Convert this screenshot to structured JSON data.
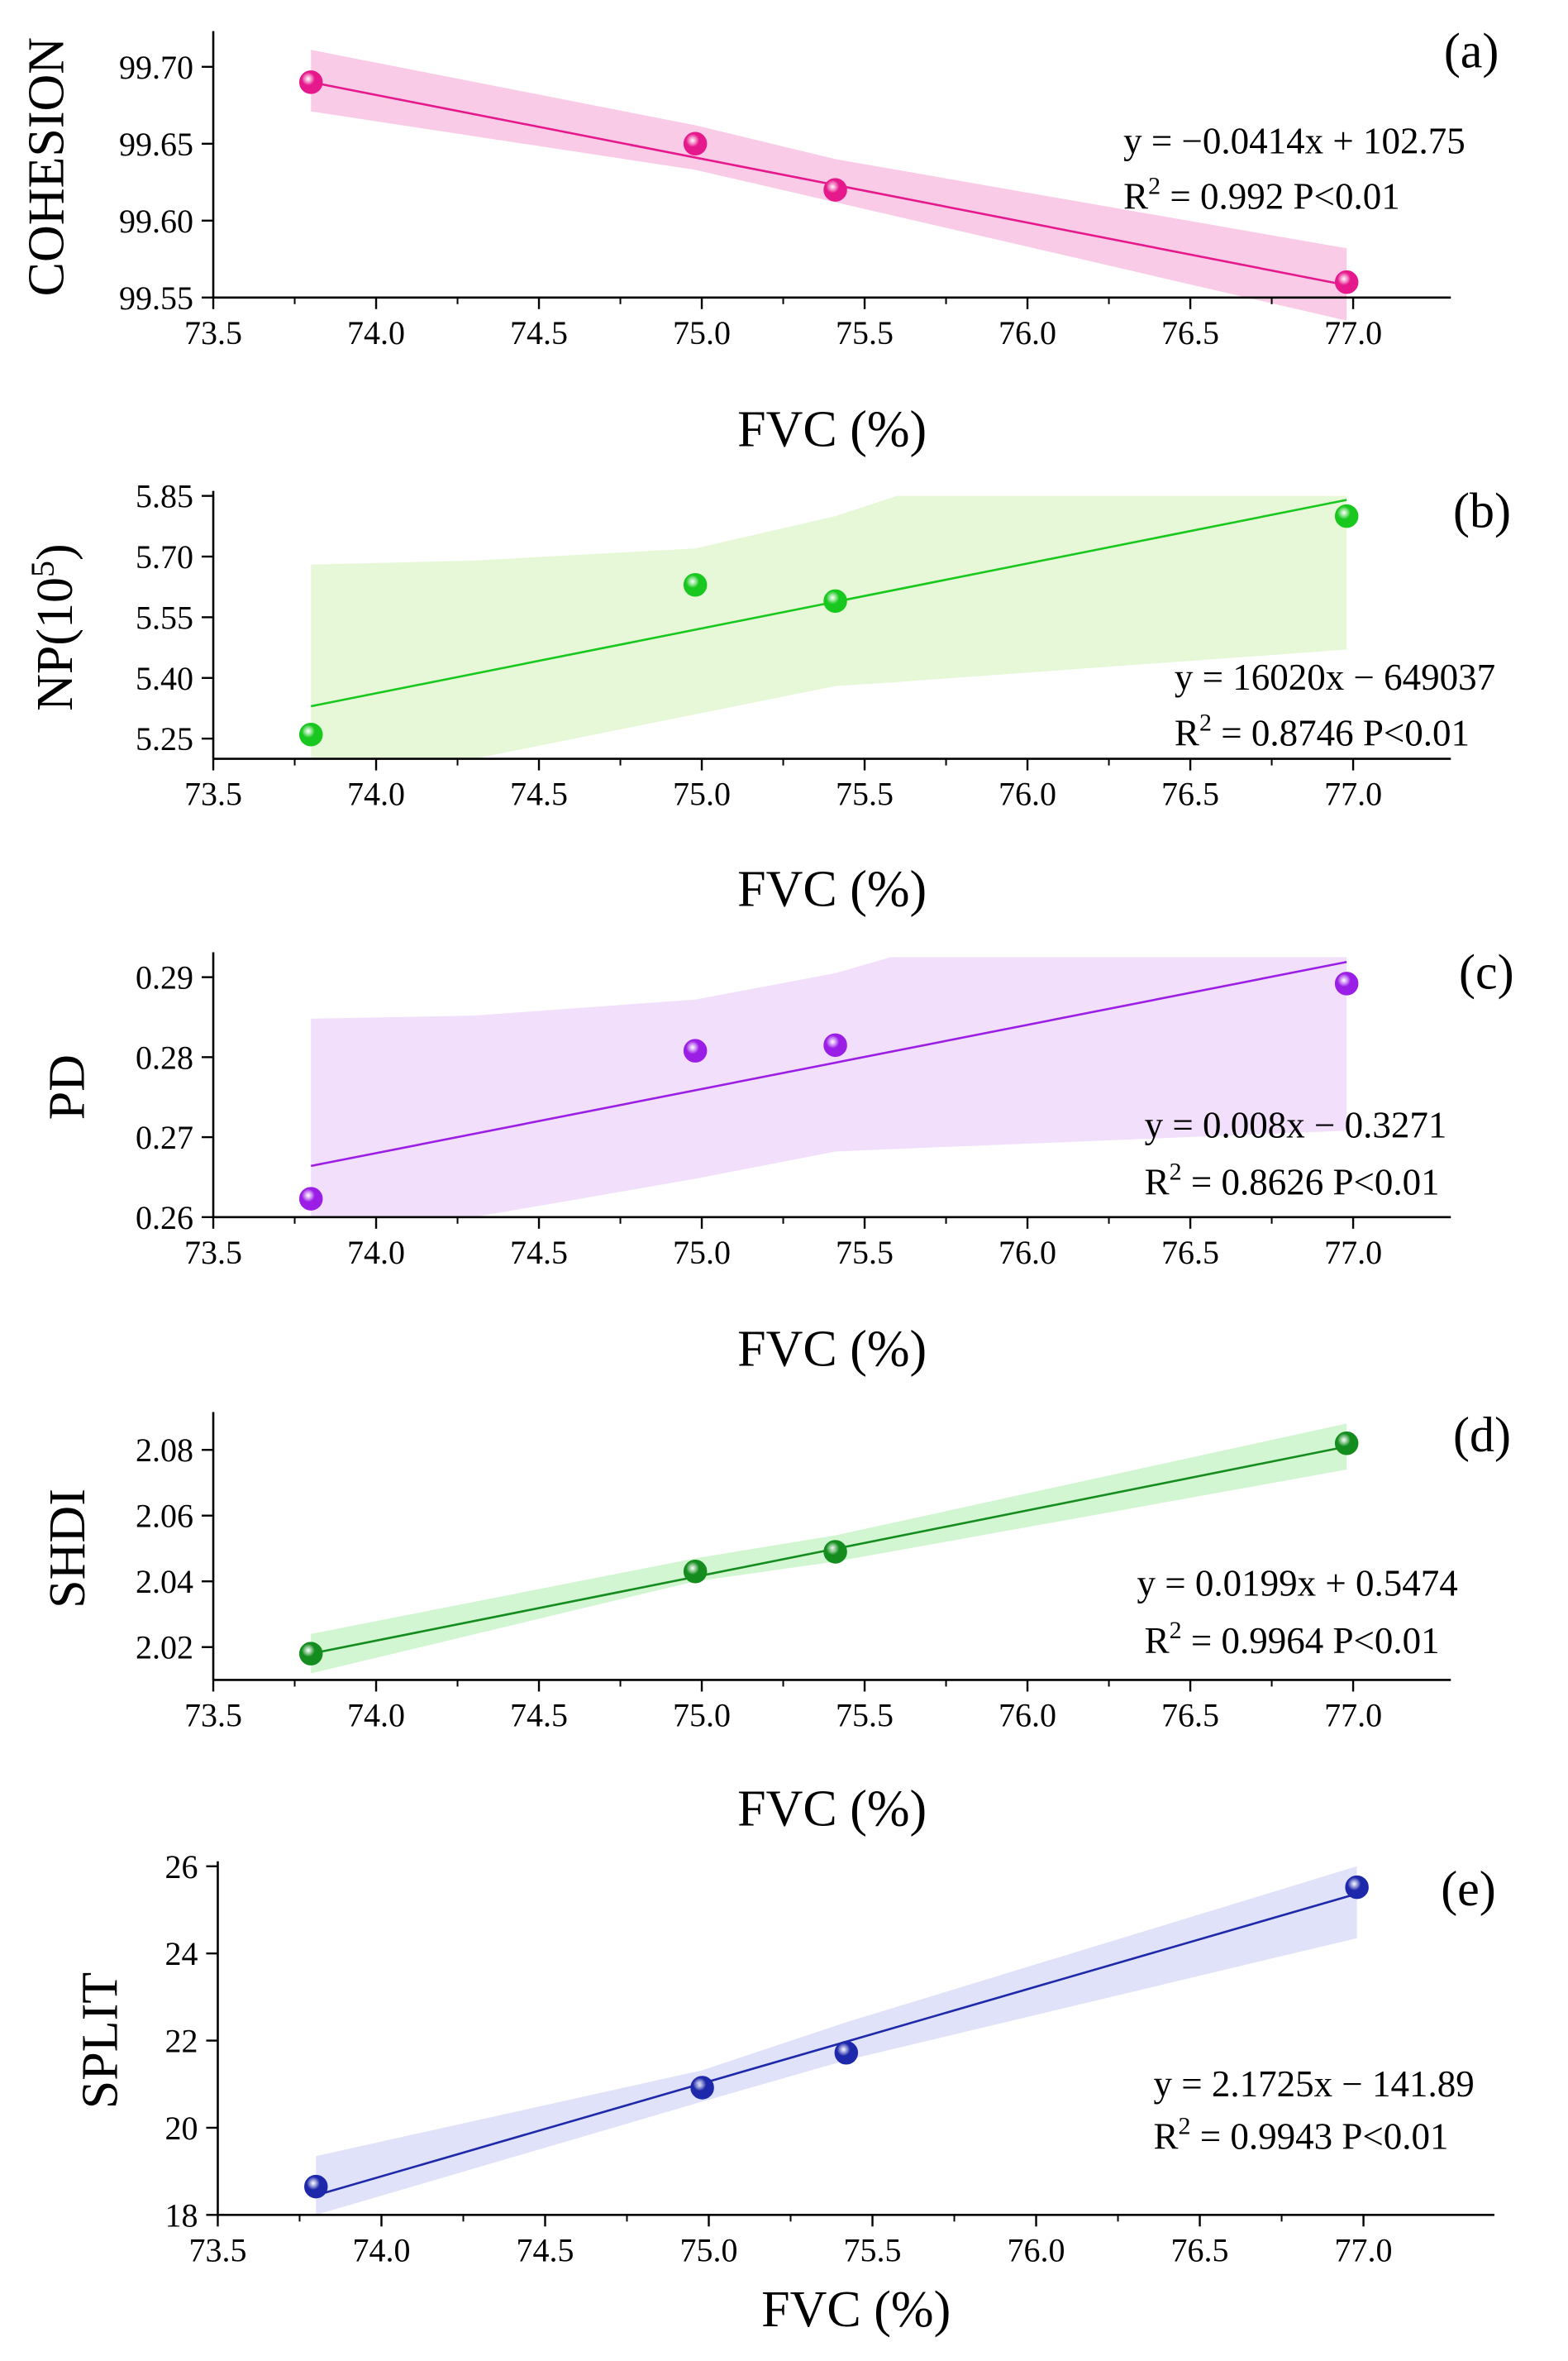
{
  "chart_data": [
    {
      "type": "scatter",
      "panel_label": "(a)",
      "ylabel": "COHESION",
      "xlabel": "FVC (%)",
      "xlim": [
        73.5,
        77.3
      ],
      "ylim": [
        99.55,
        99.72
      ],
      "x_ticks": [
        "73.5",
        "74.0",
        "74.5",
        "75.0",
        "75.5",
        "76.0",
        "76.5",
        "77.0"
      ],
      "y_ticks": [
        "99.55",
        "99.60",
        "99.65",
        "99.70"
      ],
      "y_tick_values": [
        99.55,
        99.6,
        99.65,
        99.7
      ],
      "points": [
        {
          "x": 73.8,
          "y": 99.69
        },
        {
          "x": 74.98,
          "y": 99.65
        },
        {
          "x": 75.41,
          "y": 99.62
        },
        {
          "x": 76.98,
          "y": 99.56
        }
      ],
      "fit": {
        "x_start": 73.8,
        "y_start": 99.69,
        "x_end": 76.98,
        "y_end": 99.558
      },
      "band": [
        {
          "x": 73.8,
          "lo": 99.671,
          "hi": 99.711
        },
        {
          "x": 74.98,
          "lo": 99.633,
          "hi": 99.662
        },
        {
          "x": 75.41,
          "lo": 99.612,
          "hi": 99.64
        },
        {
          "x": 76.98,
          "lo": 99.535,
          "hi": 99.582
        }
      ],
      "equation": "y = −0.0414x + 102.75",
      "r2_prefix": "R",
      "r2_sup": "2",
      "r2_suffix": " = 0.992 P<0.01",
      "color": "#e6198c",
      "band_color": "#f8c5e3"
    },
    {
      "type": "scatter",
      "panel_label": "(b)",
      "ylabel_prefix": "NP(10",
      "ylabel_sup": "5",
      "ylabel_suffix": ")",
      "xlabel": "FVC (%)",
      "xlim": [
        73.5,
        77.3
      ],
      "ylim": [
        5.2,
        5.85
      ],
      "x_ticks": [
        "73.5",
        "74.0",
        "74.5",
        "75.0",
        "75.5",
        "76.0",
        "76.5",
        "77.0"
      ],
      "y_ticks": [
        "5.25",
        "5.40",
        "5.55",
        "5.70",
        "5.85"
      ],
      "y_tick_values": [
        5.25,
        5.4,
        5.55,
        5.7,
        5.85
      ],
      "points": [
        {
          "x": 73.8,
          "y": 5.26
        },
        {
          "x": 74.98,
          "y": 5.63
        },
        {
          "x": 75.41,
          "y": 5.59
        },
        {
          "x": 76.98,
          "y": 5.8
        }
      ],
      "fit": {
        "x_start": 73.8,
        "y_start": 5.33,
        "x_end": 76.98,
        "y_end": 5.84
      },
      "band": [
        {
          "x": 73.8,
          "lo": 5.2,
          "hi": 5.68
        },
        {
          "x": 74.3,
          "lo": 5.2,
          "hi": 5.69
        },
        {
          "x": 74.98,
          "lo": 5.31,
          "hi": 5.72
        },
        {
          "x": 75.41,
          "lo": 5.38,
          "hi": 5.8
        },
        {
          "x": 75.6,
          "lo": 5.39,
          "hi": 5.85
        },
        {
          "x": 76.98,
          "lo": 5.47,
          "hi": 5.85
        }
      ],
      "equation": "y = 16020x − 649037",
      "r2_prefix": "R",
      "r2_sup": "2",
      "r2_suffix": " = 0.8746 P<0.01",
      "color": "#19c81e",
      "band_color": "#e4f7d4"
    },
    {
      "type": "scatter",
      "panel_label": "(c)",
      "ylabel": "PD",
      "xlabel": "FVC (%)",
      "xlim": [
        73.5,
        77.3
      ],
      "ylim": [
        0.26,
        0.2925
      ],
      "x_ticks": [
        "73.5",
        "74.0",
        "74.5",
        "75.0",
        "75.5",
        "76.0",
        "76.5",
        "77.0"
      ],
      "y_ticks": [
        "0.26",
        "0.27",
        "0.28",
        "0.29"
      ],
      "y_tick_values": [
        0.26,
        0.27,
        0.28,
        0.29
      ],
      "points": [
        {
          "x": 73.8,
          "y": 0.2623
        },
        {
          "x": 74.98,
          "y": 0.2808
        },
        {
          "x": 75.41,
          "y": 0.2815
        },
        {
          "x": 76.98,
          "y": 0.2892
        }
      ],
      "fit": {
        "x_start": 73.8,
        "y_start": 0.2664,
        "x_end": 76.98,
        "y_end": 0.2919
      },
      "band": [
        {
          "x": 73.8,
          "lo": 0.26,
          "hi": 0.2848
        },
        {
          "x": 74.3,
          "lo": 0.26,
          "hi": 0.2852
        },
        {
          "x": 74.98,
          "lo": 0.2648,
          "hi": 0.2872
        },
        {
          "x": 75.41,
          "lo": 0.2682,
          "hi": 0.2905
        },
        {
          "x": 75.58,
          "lo": 0.2685,
          "hi": 0.2925
        },
        {
          "x": 76.98,
          "lo": 0.2708,
          "hi": 0.2925
        }
      ],
      "equation": "y = 0.008x − 0.3271",
      "r2_prefix": "R",
      "r2_sup": "2",
      "r2_suffix": " = 0.8626  P<0.01",
      "color": "#9b1ee6",
      "band_color": "#efdcfb"
    },
    {
      "type": "scatter",
      "panel_label": "(d)",
      "ylabel": "SHDI",
      "xlabel": "FVC (%)",
      "xlim": [
        73.5,
        77.3
      ],
      "ylim": [
        2.01,
        2.09
      ],
      "x_ticks": [
        "73.5",
        "74.0",
        "74.5",
        "75.0",
        "75.5",
        "76.0",
        "76.5",
        "77.0"
      ],
      "y_ticks": [
        "2.02",
        "2.04",
        "2.06",
        "2.08"
      ],
      "y_tick_values": [
        2.02,
        2.04,
        2.06,
        2.08
      ],
      "points": [
        {
          "x": 73.8,
          "y": 2.018
        },
        {
          "x": 74.98,
          "y": 2.043
        },
        {
          "x": 75.41,
          "y": 2.049
        },
        {
          "x": 76.98,
          "y": 2.082
        }
      ],
      "fit": {
        "x_start": 73.8,
        "y_start": 2.018,
        "x_end": 76.98,
        "y_end": 2.081
      },
      "band": [
        {
          "x": 73.8,
          "lo": 2.012,
          "hi": 2.024
        },
        {
          "x": 74.98,
          "lo": 2.04,
          "hi": 2.047
        },
        {
          "x": 75.41,
          "lo": 2.046,
          "hi": 2.054
        },
        {
          "x": 76.98,
          "lo": 2.074,
          "hi": 2.088
        }
      ],
      "equation": "y = 0.0199x + 0.5474",
      "r2_prefix": "R",
      "r2_sup": "2",
      "r2_suffix": " = 0.9964  P<0.01",
      "color": "#148c1e",
      "band_color": "#cdf5cc"
    },
    {
      "type": "scatter",
      "panel_label": "(e)",
      "ylabel": "SPLIT",
      "xlabel": "FVC (%)",
      "xlim": [
        73.5,
        77.4
      ],
      "ylim": [
        18,
        26
      ],
      "x_ticks": [
        "73.5",
        "74.0",
        "74.5",
        "75.0",
        "75.5",
        "76.0",
        "76.5",
        "77.0"
      ],
      "y_ticks": [
        "18",
        "20",
        "22",
        "24",
        "26"
      ],
      "y_tick_values": [
        18,
        20,
        22,
        24,
        26
      ],
      "points": [
        {
          "x": 73.8,
          "y": 18.65
        },
        {
          "x": 74.98,
          "y": 20.92
        },
        {
          "x": 75.42,
          "y": 21.72
        },
        {
          "x": 76.98,
          "y": 25.52
        }
      ],
      "fit": {
        "x_start": 73.8,
        "y_start": 18.45,
        "x_end": 76.98,
        "y_end": 25.37
      },
      "band": [
        {
          "x": 73.8,
          "lo": 18.0,
          "hi": 19.35
        },
        {
          "x": 74.98,
          "lo": 20.6,
          "hi": 21.32
        },
        {
          "x": 75.42,
          "lo": 21.55,
          "hi": 22.42
        },
        {
          "x": 76.98,
          "lo": 24.35,
          "hi": 26.0
        }
      ],
      "equation": "y = 2.1725x − 141.89",
      "r2_prefix": "R",
      "r2_sup": "2",
      "r2_suffix": " = 0.9943 P<0.01",
      "color": "#1e28aa",
      "band_color": "#dcdff8"
    }
  ]
}
